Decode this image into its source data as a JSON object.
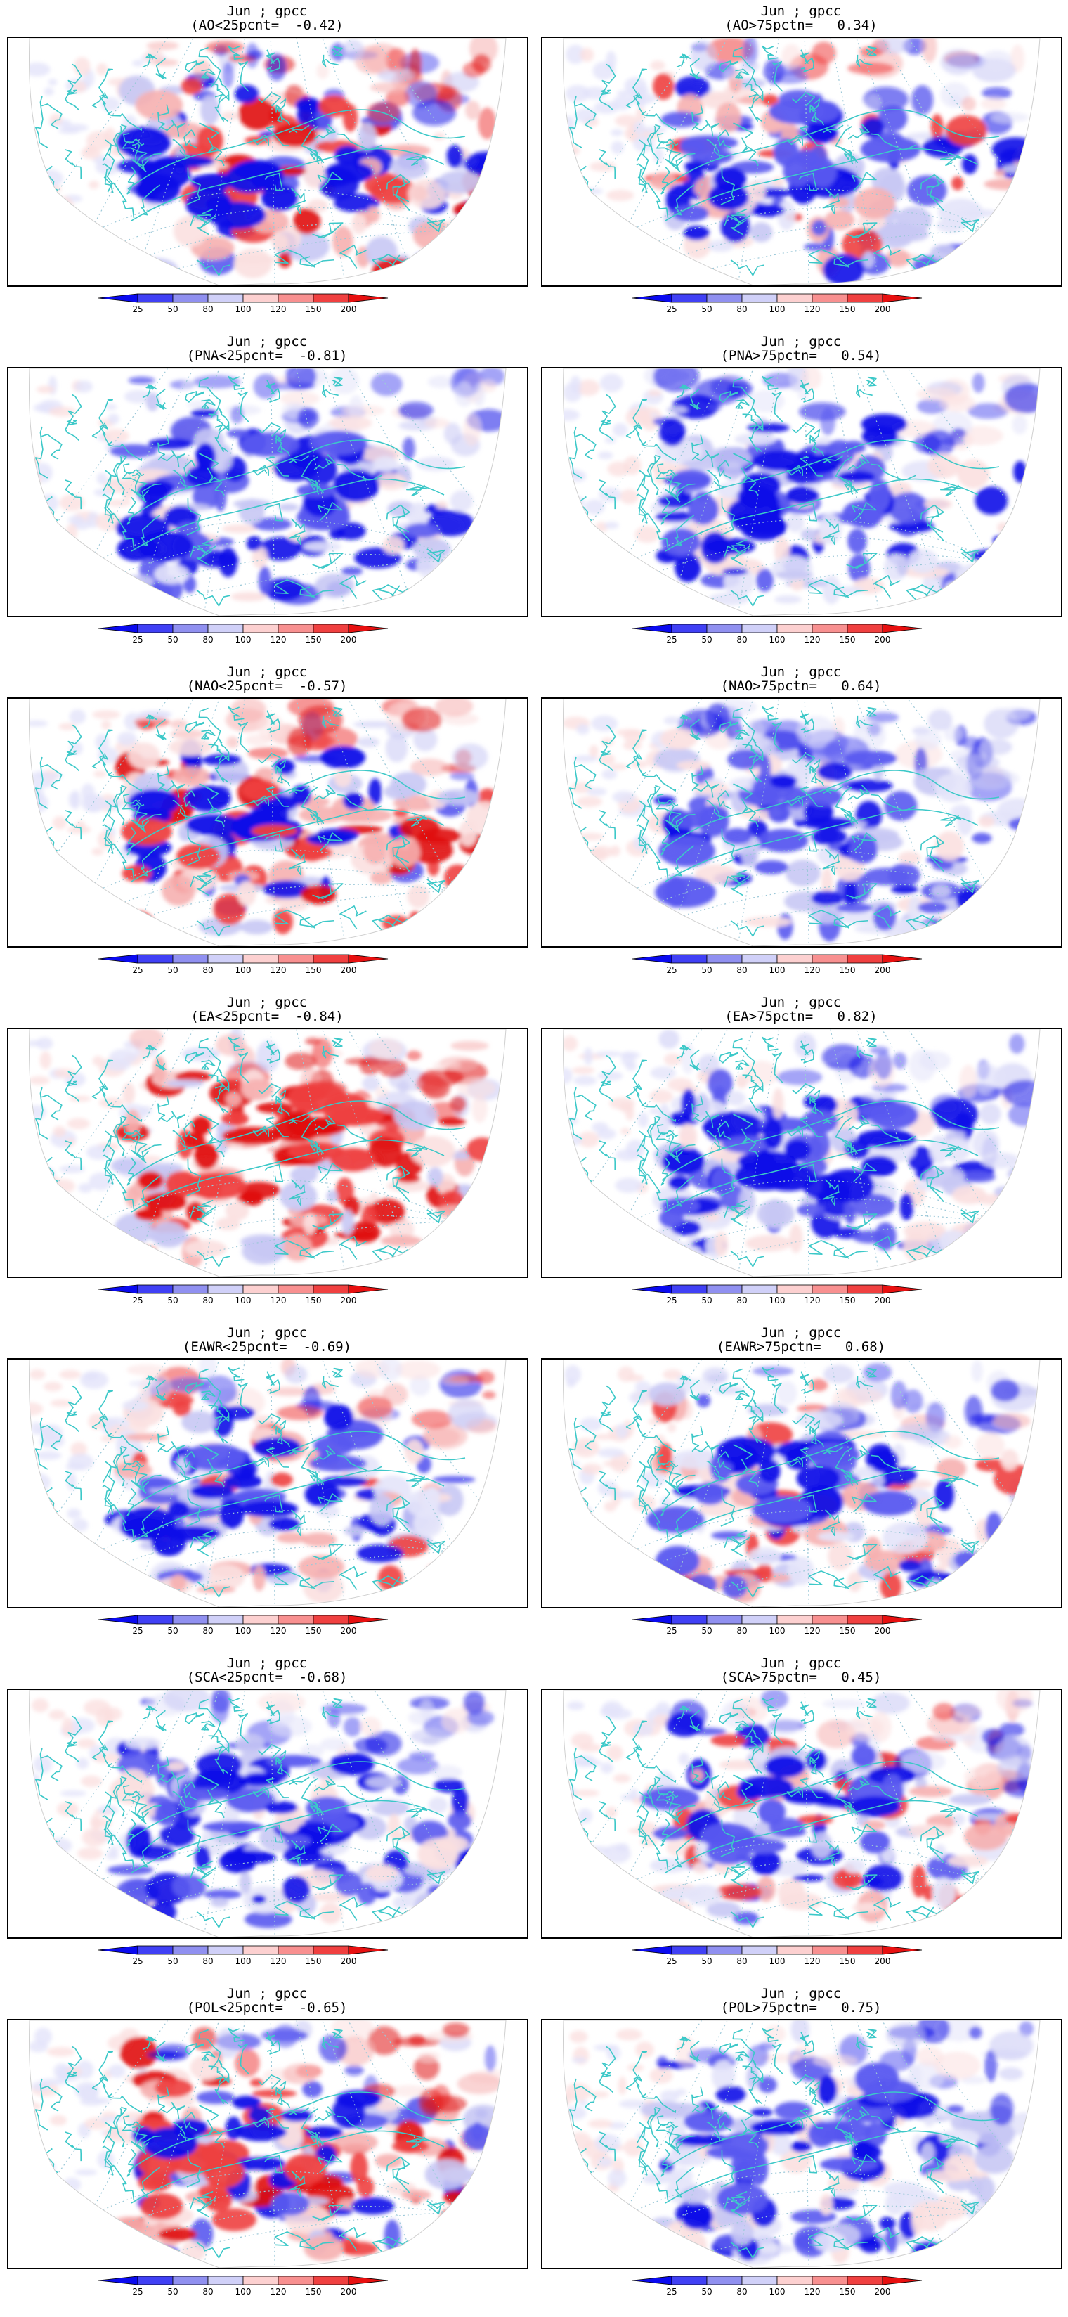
{
  "figure": {
    "panels": [
      {
        "line1": "Jun ; gpcc",
        "line2": "(AO<25pcnt=  -0.42)",
        "dominant": "mixed-red"
      },
      {
        "line1": "Jun ; gpcc",
        "line2": "(AO>75pctn=   0.34)",
        "dominant": "mixed-blue"
      },
      {
        "line1": "Jun ; gpcc",
        "line2": "(PNA<25pcnt=  -0.81)",
        "dominant": "blue"
      },
      {
        "line1": "Jun ; gpcc",
        "line2": "(PNA>75pctn=   0.54)",
        "dominant": "blue"
      },
      {
        "line1": "Jun ; gpcc",
        "line2": "(NAO<25pcnt=  -0.57)",
        "dominant": "mixed-red"
      },
      {
        "line1": "Jun ; gpcc",
        "line2": "(NAO>75pctn=   0.64)",
        "dominant": "blue"
      },
      {
        "line1": "Jun ; gpcc",
        "line2": "(EA<25pcnt=  -0.84)",
        "dominant": "red"
      },
      {
        "line1": "Jun ; gpcc",
        "line2": "(EA>75pctn=   0.82)",
        "dominant": "blue"
      },
      {
        "line1": "Jun ; gpcc",
        "line2": "(EAWR<25pcnt=  -0.69)",
        "dominant": "mixed-blue"
      },
      {
        "line1": "Jun ; gpcc",
        "line2": "(EAWR>75pctn=   0.68)",
        "dominant": "mixed-blue"
      },
      {
        "line1": "Jun ; gpcc",
        "line2": "(SCA<25pcnt=  -0.68)",
        "dominant": "blue"
      },
      {
        "line1": "Jun ; gpcc",
        "line2": "(SCA>75pctn=   0.45)",
        "dominant": "mixed-blue"
      },
      {
        "line1": "Jun ; gpcc",
        "line2": "(POL<25pcnt=  -0.65)",
        "dominant": "mixed-red"
      },
      {
        "line1": "Jun ; gpcc",
        "line2": "(POL>75pctn=   0.75)",
        "dominant": "blue"
      }
    ],
    "colorbar": {
      "ticks": [
        "25",
        "50",
        "80",
        "100",
        "120",
        "150",
        "200"
      ],
      "colors": [
        "#0a0af0",
        "#4040f5",
        "#9090f0",
        "#d0d0f8",
        "#fcd0d0",
        "#f89090",
        "#f04040",
        "#e81010"
      ]
    },
    "palette": {
      "coast": "#3cc8c8",
      "grid": "#9cc8d8",
      "frame": "#000000",
      "deepblue": "#1010e8",
      "blue": "#5a5af0",
      "lightblue": "#c8c8f4",
      "paleblue": "#e4e4fa",
      "palered": "#fbe0e0",
      "lightred": "#f6b0b0",
      "red": "#ee4040",
      "deepred": "#e01010"
    }
  }
}
